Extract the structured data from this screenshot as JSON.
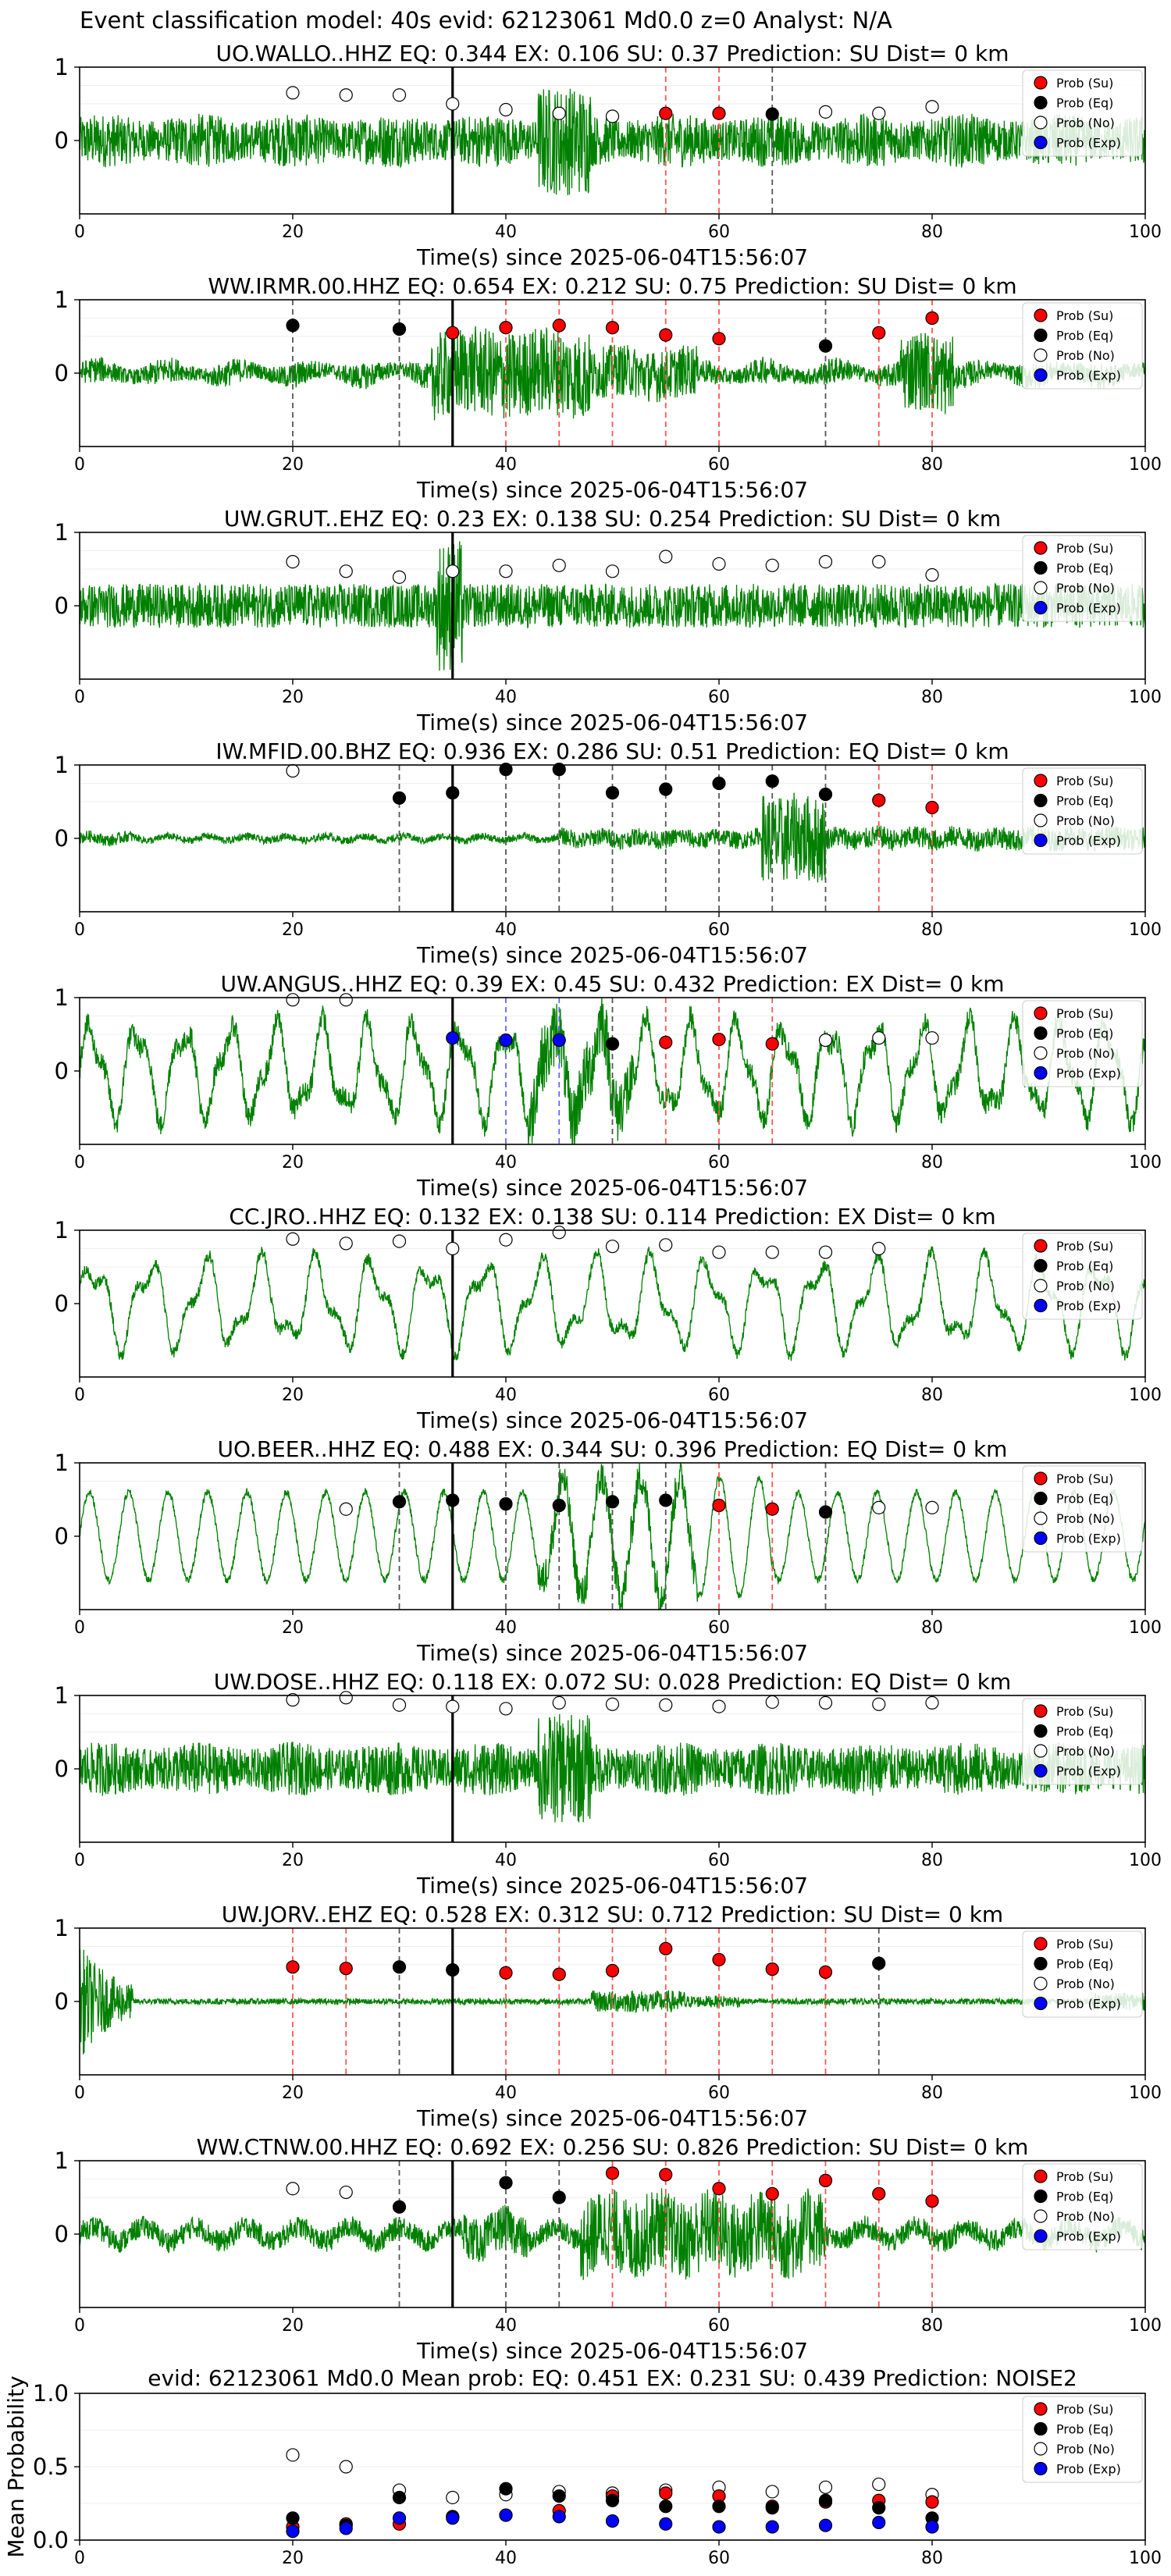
{
  "figure": {
    "suptitle": "Event classification model: 40s evid: 62123061 Md0.0 z=0 Analyst: N/A",
    "xlabel": "Time(s) since 2025-06-04T15:56:07",
    "xticks": [
      0,
      20,
      40,
      60,
      80,
      100
    ],
    "xlim": [
      0,
      100
    ],
    "ylim": [
      -1,
      1
    ],
    "yticks": [
      0,
      1
    ],
    "event_line_x": 35,
    "legend": [
      "Prob (Su)",
      "Prob (Eq)",
      "Prob (No)",
      "Prob (Exp)"
    ],
    "colors": {
      "waveform": "#008000",
      "su": "#ff0000",
      "eq": "#000000",
      "no": "#ffffff",
      "exp": "#0000ff",
      "event_line": "#000000"
    }
  },
  "chart_data": [
    {
      "type": "line",
      "title": "UO.WALLO..HHZ   EQ: 0.344  EX: 0.106  SU: 0.37   Prediction: SU    Dist= 0 km",
      "waveform": "broadband-noise",
      "points": [
        {
          "t": 20,
          "cls": "no",
          "p": 0.65
        },
        {
          "t": 25,
          "cls": "no",
          "p": 0.62
        },
        {
          "t": 30,
          "cls": "no",
          "p": 0.62
        },
        {
          "t": 35,
          "cls": "no",
          "p": 0.5
        },
        {
          "t": 40,
          "cls": "no",
          "p": 0.42
        },
        {
          "t": 45,
          "cls": "no",
          "p": 0.37
        },
        {
          "t": 50,
          "cls": "no",
          "p": 0.33
        },
        {
          "t": 55,
          "cls": "su",
          "p": 0.37
        },
        {
          "t": 60,
          "cls": "su",
          "p": 0.37
        },
        {
          "t": 65,
          "cls": "eq",
          "p": 0.36
        },
        {
          "t": 70,
          "cls": "no",
          "p": 0.39
        },
        {
          "t": 75,
          "cls": "no",
          "p": 0.37
        },
        {
          "t": 80,
          "cls": "no",
          "p": 0.46
        }
      ]
    },
    {
      "type": "line",
      "title": "WW.IRMR.00.HHZ   EQ: 0.654  EX: 0.212  SU: 0.75   Prediction: SU    Dist= 0 km",
      "waveform": "burst-mid",
      "points": [
        {
          "t": 20,
          "cls": "eq",
          "p": 0.65
        },
        {
          "t": 30,
          "cls": "eq",
          "p": 0.6
        },
        {
          "t": 35,
          "cls": "su",
          "p": 0.55
        },
        {
          "t": 40,
          "cls": "su",
          "p": 0.62
        },
        {
          "t": 45,
          "cls": "su",
          "p": 0.65
        },
        {
          "t": 50,
          "cls": "su",
          "p": 0.62
        },
        {
          "t": 55,
          "cls": "su",
          "p": 0.52
        },
        {
          "t": 60,
          "cls": "su",
          "p": 0.47
        },
        {
          "t": 70,
          "cls": "eq",
          "p": 0.37
        },
        {
          "t": 75,
          "cls": "su",
          "p": 0.55
        },
        {
          "t": 80,
          "cls": "su",
          "p": 0.75
        }
      ]
    },
    {
      "type": "line",
      "title": "UW.GRUT..EHZ   EQ: 0.23  EX: 0.138  SU: 0.254   Prediction: SU    Dist= 0 km",
      "waveform": "noise-spike",
      "points": [
        {
          "t": 20,
          "cls": "no",
          "p": 0.6
        },
        {
          "t": 25,
          "cls": "no",
          "p": 0.47
        },
        {
          "t": 30,
          "cls": "no",
          "p": 0.39
        },
        {
          "t": 35,
          "cls": "no",
          "p": 0.47
        },
        {
          "t": 40,
          "cls": "no",
          "p": 0.47
        },
        {
          "t": 45,
          "cls": "no",
          "p": 0.55
        },
        {
          "t": 50,
          "cls": "no",
          "p": 0.47
        },
        {
          "t": 55,
          "cls": "no",
          "p": 0.67
        },
        {
          "t": 60,
          "cls": "no",
          "p": 0.57
        },
        {
          "t": 65,
          "cls": "no",
          "p": 0.55
        },
        {
          "t": 70,
          "cls": "no",
          "p": 0.6
        },
        {
          "t": 75,
          "cls": "no",
          "p": 0.6
        },
        {
          "t": 80,
          "cls": "no",
          "p": 0.42
        }
      ]
    },
    {
      "type": "line",
      "title": "IW.MFID.00.BHZ   EQ: 0.936  EX: 0.286  SU: 0.51   Prediction: EQ    Dist= 0 km",
      "waveform": "quiet-burst",
      "points": [
        {
          "t": 20,
          "cls": "no",
          "p": 0.92
        },
        {
          "t": 30,
          "cls": "eq",
          "p": 0.55
        },
        {
          "t": 35,
          "cls": "eq",
          "p": 0.62
        },
        {
          "t": 40,
          "cls": "eq",
          "p": 0.94
        },
        {
          "t": 45,
          "cls": "eq",
          "p": 0.94
        },
        {
          "t": 50,
          "cls": "eq",
          "p": 0.62
        },
        {
          "t": 55,
          "cls": "eq",
          "p": 0.67
        },
        {
          "t": 60,
          "cls": "eq",
          "p": 0.75
        },
        {
          "t": 65,
          "cls": "eq",
          "p": 0.78
        },
        {
          "t": 70,
          "cls": "eq",
          "p": 0.6
        },
        {
          "t": 75,
          "cls": "su",
          "p": 0.52
        },
        {
          "t": 80,
          "cls": "su",
          "p": 0.42
        }
      ]
    },
    {
      "type": "line",
      "title": "UW.ANGUS..HHZ   EQ: 0.39  EX: 0.45  SU: 0.432   Prediction: EX    Dist= 0 km",
      "waveform": "oscillating",
      "points": [
        {
          "t": 20,
          "cls": "no",
          "p": 0.97
        },
        {
          "t": 25,
          "cls": "no",
          "p": 0.97
        },
        {
          "t": 35,
          "cls": "exp",
          "p": 0.45
        },
        {
          "t": 40,
          "cls": "exp",
          "p": 0.42
        },
        {
          "t": 45,
          "cls": "exp",
          "p": 0.42
        },
        {
          "t": 50,
          "cls": "eq",
          "p": 0.37
        },
        {
          "t": 55,
          "cls": "su",
          "p": 0.39
        },
        {
          "t": 60,
          "cls": "su",
          "p": 0.43
        },
        {
          "t": 65,
          "cls": "su",
          "p": 0.37
        },
        {
          "t": 70,
          "cls": "no",
          "p": 0.42
        },
        {
          "t": 75,
          "cls": "no",
          "p": 0.45
        },
        {
          "t": 80,
          "cls": "no",
          "p": 0.45
        }
      ]
    },
    {
      "type": "line",
      "title": "CC.JRO..HHZ   EQ: 0.132  EX: 0.138  SU: 0.114   Prediction: EX    Dist= 0 km",
      "waveform": "oscillating-slow",
      "points": [
        {
          "t": 20,
          "cls": "no",
          "p": 0.88
        },
        {
          "t": 25,
          "cls": "no",
          "p": 0.82
        },
        {
          "t": 30,
          "cls": "no",
          "p": 0.85
        },
        {
          "t": 35,
          "cls": "no",
          "p": 0.75
        },
        {
          "t": 40,
          "cls": "no",
          "p": 0.87
        },
        {
          "t": 45,
          "cls": "no",
          "p": 0.97
        },
        {
          "t": 50,
          "cls": "no",
          "p": 0.78
        },
        {
          "t": 55,
          "cls": "no",
          "p": 0.8
        },
        {
          "t": 60,
          "cls": "no",
          "p": 0.7
        },
        {
          "t": 65,
          "cls": "no",
          "p": 0.7
        },
        {
          "t": 70,
          "cls": "no",
          "p": 0.7
        },
        {
          "t": 75,
          "cls": "no",
          "p": 0.75
        }
      ]
    },
    {
      "type": "line",
      "title": "UO.BEER..HHZ   EQ: 0.488  EX: 0.344  SU: 0.396   Prediction: EQ    Dist= 0 km",
      "waveform": "oscillating-regular",
      "points": [
        {
          "t": 25,
          "cls": "no",
          "p": 0.37
        },
        {
          "t": 30,
          "cls": "eq",
          "p": 0.47
        },
        {
          "t": 35,
          "cls": "eq",
          "p": 0.49
        },
        {
          "t": 40,
          "cls": "eq",
          "p": 0.44
        },
        {
          "t": 45,
          "cls": "eq",
          "p": 0.42
        },
        {
          "t": 50,
          "cls": "eq",
          "p": 0.47
        },
        {
          "t": 55,
          "cls": "eq",
          "p": 0.49
        },
        {
          "t": 60,
          "cls": "su",
          "p": 0.42
        },
        {
          "t": 65,
          "cls": "su",
          "p": 0.37
        },
        {
          "t": 70,
          "cls": "eq",
          "p": 0.33
        },
        {
          "t": 75,
          "cls": "no",
          "p": 0.39
        },
        {
          "t": 80,
          "cls": "no",
          "p": 0.39
        }
      ]
    },
    {
      "type": "line",
      "title": "UW.DOSE..HHZ   EQ: 0.118  EX: 0.072  SU: 0.028   Prediction: EQ    Dist= 0 km",
      "waveform": "broadband-noise",
      "points": [
        {
          "t": 20,
          "cls": "no",
          "p": 0.94
        },
        {
          "t": 25,
          "cls": "no",
          "p": 0.97
        },
        {
          "t": 30,
          "cls": "no",
          "p": 0.87
        },
        {
          "t": 35,
          "cls": "no",
          "p": 0.85
        },
        {
          "t": 40,
          "cls": "no",
          "p": 0.82
        },
        {
          "t": 45,
          "cls": "no",
          "p": 0.9
        },
        {
          "t": 50,
          "cls": "no",
          "p": 0.88
        },
        {
          "t": 55,
          "cls": "no",
          "p": 0.87
        },
        {
          "t": 60,
          "cls": "no",
          "p": 0.85
        },
        {
          "t": 65,
          "cls": "no",
          "p": 0.91
        },
        {
          "t": 70,
          "cls": "no",
          "p": 0.9
        },
        {
          "t": 75,
          "cls": "no",
          "p": 0.88
        },
        {
          "t": 80,
          "cls": "no",
          "p": 0.9
        }
      ]
    },
    {
      "type": "line",
      "title": "UW.JORV..EHZ   EQ: 0.528  EX: 0.312  SU: 0.712   Prediction: SU    Dist= 0 km",
      "waveform": "decay-quiet",
      "points": [
        {
          "t": 20,
          "cls": "su",
          "p": 0.47
        },
        {
          "t": 25,
          "cls": "su",
          "p": 0.45
        },
        {
          "t": 30,
          "cls": "eq",
          "p": 0.47
        },
        {
          "t": 35,
          "cls": "eq",
          "p": 0.43
        },
        {
          "t": 40,
          "cls": "su",
          "p": 0.39
        },
        {
          "t": 45,
          "cls": "su",
          "p": 0.37
        },
        {
          "t": 50,
          "cls": "su",
          "p": 0.42
        },
        {
          "t": 55,
          "cls": "su",
          "p": 0.72
        },
        {
          "t": 60,
          "cls": "su",
          "p": 0.57
        },
        {
          "t": 65,
          "cls": "su",
          "p": 0.44
        },
        {
          "t": 70,
          "cls": "su",
          "p": 0.4
        },
        {
          "t": 75,
          "cls": "eq",
          "p": 0.52
        }
      ]
    },
    {
      "type": "line",
      "title": "WW.CTNW.00.HHZ   EQ: 0.692  EX: 0.256  SU: 0.826   Prediction: SU    Dist= 0 km",
      "waveform": "burst-late",
      "points": [
        {
          "t": 20,
          "cls": "no",
          "p": 0.62
        },
        {
          "t": 25,
          "cls": "no",
          "p": 0.57
        },
        {
          "t": 30,
          "cls": "eq",
          "p": 0.37
        },
        {
          "t": 40,
          "cls": "eq",
          "p": 0.7
        },
        {
          "t": 45,
          "cls": "eq",
          "p": 0.5
        },
        {
          "t": 50,
          "cls": "su",
          "p": 0.83
        },
        {
          "t": 55,
          "cls": "su",
          "p": 0.81
        },
        {
          "t": 60,
          "cls": "su",
          "p": 0.62
        },
        {
          "t": 65,
          "cls": "su",
          "p": 0.55
        },
        {
          "t": 70,
          "cls": "su",
          "p": 0.73
        },
        {
          "t": 75,
          "cls": "su",
          "p": 0.55
        },
        {
          "t": 80,
          "cls": "su",
          "p": 0.45
        }
      ]
    },
    {
      "type": "scatter",
      "title": "evid: 62123061  Md0.0   Mean prob:   EQ: 0.451  EX: 0.231  SU: 0.439   Prediction: NOISE2",
      "ylabel": "Mean Probability",
      "ylim": [
        0,
        1
      ],
      "yticks": [
        0.0,
        0.5,
        1.0
      ],
      "ytick_labels": [
        "0.0",
        "0.5",
        "1.0"
      ],
      "x": [
        20,
        25,
        30,
        35,
        40,
        45,
        50,
        55,
        60,
        65,
        70,
        75,
        80
      ],
      "series": [
        {
          "name": "Prob (Su)",
          "cls": "su",
          "values": [
            0.09,
            0.11,
            0.11,
            0.16,
            0.17,
            0.2,
            0.3,
            0.32,
            0.3,
            0.23,
            0.26,
            0.27,
            0.26
          ]
        },
        {
          "name": "Prob (Eq)",
          "cls": "eq",
          "values": [
            0.15,
            0.1,
            0.29,
            0.16,
            0.35,
            0.3,
            0.27,
            0.23,
            0.23,
            0.22,
            0.27,
            0.22,
            0.15
          ]
        },
        {
          "name": "Prob (No)",
          "cls": "no",
          "values": [
            0.58,
            0.5,
            0.34,
            0.29,
            0.31,
            0.33,
            0.32,
            0.34,
            0.36,
            0.33,
            0.36,
            0.38,
            0.31
          ]
        },
        {
          "name": "Prob (Exp)",
          "cls": "exp",
          "values": [
            0.06,
            0.08,
            0.15,
            0.15,
            0.17,
            0.16,
            0.13,
            0.11,
            0.09,
            0.09,
            0.1,
            0.12,
            0.09
          ]
        }
      ]
    }
  ]
}
